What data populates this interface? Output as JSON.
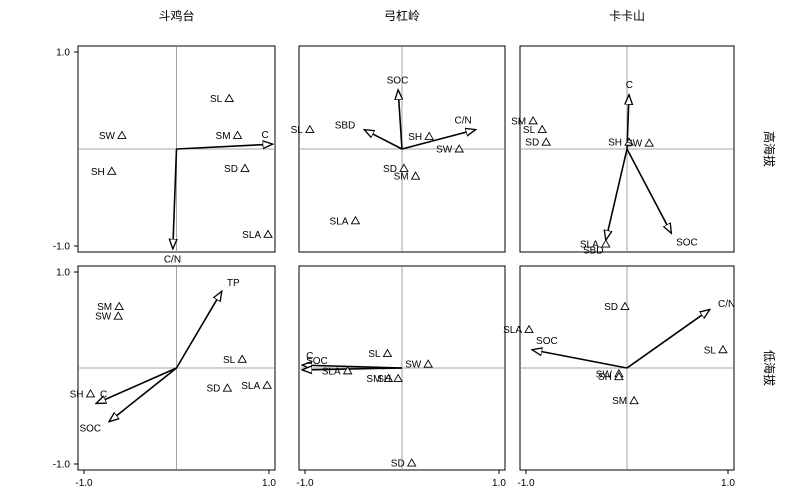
{
  "chart_data": {
    "type": "scatter",
    "subtype": "RDA ordination biplot grid",
    "columns": [
      "斗鸡台",
      "弓杠岭",
      "卡卡山"
    ],
    "rows": [
      "高海拔",
      "低海拔"
    ],
    "xlim": [
      -1.0,
      1.0
    ],
    "ylim": [
      -1.0,
      1.0
    ],
    "x_tick_labels": [
      "-1.0",
      "1.0"
    ],
    "y_tick_labels": [
      "1.0",
      "-1.0"
    ],
    "grid": false,
    "panels": [
      {
        "row": "高海拔",
        "column": "斗鸡台",
        "points": [
          {
            "label": "SL",
            "x": 0.57,
            "y": 0.52
          },
          {
            "label": "SW",
            "x": -0.59,
            "y": 0.14
          },
          {
            "label": "SM",
            "x": 0.66,
            "y": 0.14
          },
          {
            "label": "SH",
            "x": -0.7,
            "y": -0.23
          },
          {
            "label": "SD",
            "x": 0.74,
            "y": -0.2
          },
          {
            "label": "SLA",
            "x": 0.99,
            "y": -0.88
          }
        ],
        "vectors": [
          {
            "label": "C",
            "x": 1.04,
            "y": 0.05
          },
          {
            "label": "C/N",
            "x": -0.04,
            "y": -1.03
          }
        ]
      },
      {
        "row": "高海拔",
        "column": "弓杠岭",
        "points": [
          {
            "label": "SL",
            "x": -0.95,
            "y": 0.2
          },
          {
            "label": "SH",
            "x": 0.28,
            "y": 0.13
          },
          {
            "label": "SW",
            "x": 0.59,
            "y": 0.0
          },
          {
            "label": "SD",
            "x": 0.02,
            "y": -0.2
          },
          {
            "label": "SM",
            "x": 0.14,
            "y": -0.28
          },
          {
            "label": "SLA",
            "x": -0.48,
            "y": -0.74
          }
        ],
        "vectors": [
          {
            "label": "SOC",
            "x": -0.04,
            "y": 0.61
          },
          {
            "label": "SBD",
            "x": -0.39,
            "y": 0.2
          },
          {
            "label": "C/N",
            "x": 0.76,
            "y": 0.2
          }
        ]
      },
      {
        "row": "高海拔",
        "column": "卡卡山",
        "points": [
          {
            "label": "SM",
            "x": -0.93,
            "y": 0.29
          },
          {
            "label": "SL",
            "x": -0.84,
            "y": 0.2
          },
          {
            "label": "SD",
            "x": -0.8,
            "y": 0.07
          },
          {
            "label": "SH",
            "x": 0.02,
            "y": 0.07
          },
          {
            "label": "SW",
            "x": 0.22,
            "y": 0.06
          },
          {
            "label": "SLA",
            "x": -0.21,
            "y": -0.98
          }
        ],
        "vectors": [
          {
            "label": "C",
            "x": 0.02,
            "y": 0.56
          },
          {
            "label": "SBD",
            "x": -0.21,
            "y": -0.94
          },
          {
            "label": "SOC",
            "x": 0.44,
            "y": -0.87
          }
        ]
      },
      {
        "row": "低海拔",
        "column": "斗鸡台",
        "points": [
          {
            "label": "SM",
            "x": -0.62,
            "y": 0.64
          },
          {
            "label": "SW",
            "x": -0.63,
            "y": 0.54
          },
          {
            "label": "SL",
            "x": 0.71,
            "y": 0.09
          },
          {
            "label": "SH",
            "x": -0.93,
            "y": -0.27
          },
          {
            "label": "SD",
            "x": 0.55,
            "y": -0.21
          },
          {
            "label": "SLA",
            "x": 0.98,
            "y": -0.18
          }
        ],
        "vectors": [
          {
            "label": "TP",
            "x": 0.49,
            "y": 0.8
          },
          {
            "label": "C",
            "x": -0.87,
            "y": -0.37
          },
          {
            "label": "SOC",
            "x": -0.73,
            "y": -0.56
          }
        ]
      },
      {
        "row": "低海拔",
        "column": "弓杠岭",
        "points": [
          {
            "label": "SL",
            "x": -0.15,
            "y": 0.15
          },
          {
            "label": "SW",
            "x": 0.27,
            "y": 0.04
          },
          {
            "label": "SLA",
            "x": -0.56,
            "y": -0.03
          },
          {
            "label": "SM",
            "x": -0.14,
            "y": -0.11
          },
          {
            "label": "SH",
            "x": -0.04,
            "y": -0.11
          },
          {
            "label": "SD",
            "x": 0.1,
            "y": -0.99
          }
        ],
        "vectors": [
          {
            "label": "C",
            "x": -1.03,
            "y": 0.03
          },
          {
            "label": "SOC",
            "x": -1.03,
            "y": -0.02
          }
        ]
      },
      {
        "row": "低海拔",
        "column": "卡卡山",
        "points": [
          {
            "label": "SD",
            "x": -0.02,
            "y": 0.64
          },
          {
            "label": "SLA",
            "x": -0.97,
            "y": 0.4
          },
          {
            "label": "SL",
            "x": 0.95,
            "y": 0.19
          },
          {
            "label": "SW",
            "x": -0.08,
            "y": -0.06
          },
          {
            "label": "SH",
            "x": -0.08,
            "y": -0.09
          },
          {
            "label": "SM",
            "x": 0.07,
            "y": -0.34
          }
        ],
        "vectors": [
          {
            "label": "C/N",
            "x": 0.82,
            "y": 0.61
          },
          {
            "label": "SOC",
            "x": -0.94,
            "y": 0.19
          }
        ]
      }
    ]
  }
}
